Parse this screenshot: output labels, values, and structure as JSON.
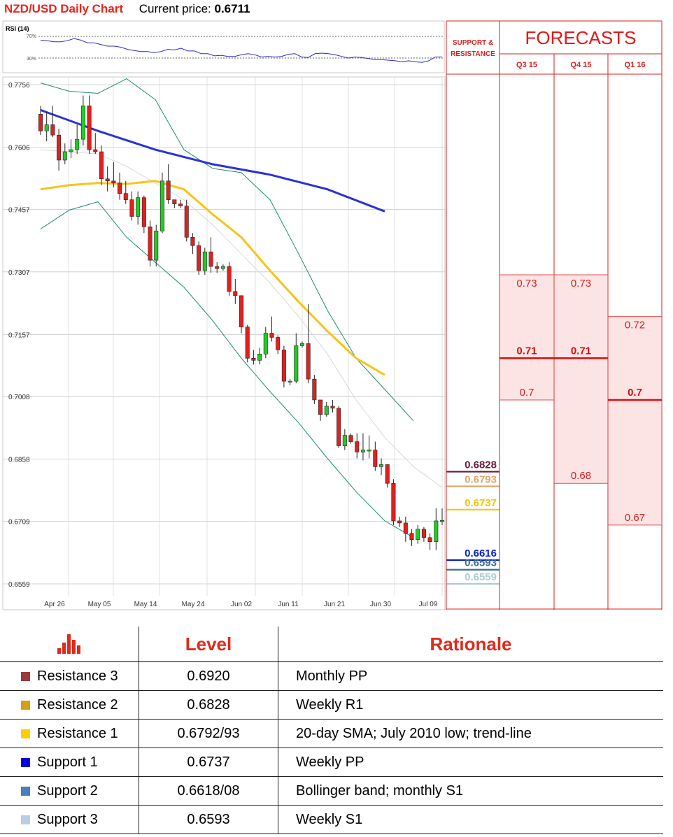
{
  "header": {
    "title": "NZD/USD Daily Chart",
    "price_label": "Current price:",
    "price_value": "0.6711"
  },
  "rsi": {
    "title": "RSI (14)",
    "levels": [
      "70%",
      "30%"
    ],
    "values": [
      63,
      62,
      60,
      60,
      62,
      66,
      63,
      58,
      58,
      55,
      52,
      52,
      50,
      46,
      44,
      42,
      42,
      40,
      42,
      46,
      45,
      48,
      43,
      43,
      38,
      38,
      34,
      35,
      33,
      33,
      36,
      38,
      36,
      32,
      33,
      32,
      33,
      37,
      38,
      32,
      31,
      38,
      39,
      38,
      36,
      33,
      30,
      32,
      31,
      29,
      27,
      27,
      26,
      25,
      23,
      25,
      23,
      22,
      25,
      32,
      32
    ]
  },
  "chart_data": {
    "type": "candlestick",
    "title": "NZD/USD Daily Chart",
    "y_ticks": [
      "0.7756",
      "0.7606",
      "0.7457",
      "0.7307",
      "0.7157",
      "0.7008",
      "0.6858",
      "0.6709",
      "0.6559"
    ],
    "ylim": [
      0.6509,
      0.7781
    ],
    "x_ticks": [
      "Apr 26",
      "May 05",
      "May 14",
      "May 24",
      "Jun 02",
      "Jun 11",
      "Jun 21",
      "Jun 30",
      "Jul 09"
    ],
    "candles": [
      [
        0.7685,
        0.7705,
        0.7635,
        0.7645
      ],
      [
        0.7645,
        0.769,
        0.762,
        0.766
      ],
      [
        0.766,
        0.7705,
        0.763,
        0.7635
      ],
      [
        0.7635,
        0.765,
        0.755,
        0.7575
      ],
      [
        0.7575,
        0.7615,
        0.7565,
        0.7595
      ],
      [
        0.7595,
        0.7625,
        0.758,
        0.76
      ],
      [
        0.76,
        0.766,
        0.759,
        0.7625
      ],
      [
        0.7625,
        0.773,
        0.761,
        0.7705
      ],
      [
        0.7705,
        0.773,
        0.759,
        0.76
      ],
      [
        0.76,
        0.764,
        0.759,
        0.7595
      ],
      [
        0.7595,
        0.761,
        0.7515,
        0.753
      ],
      [
        0.753,
        0.756,
        0.75,
        0.7525
      ],
      [
        0.7525,
        0.757,
        0.751,
        0.752
      ],
      [
        0.752,
        0.7545,
        0.748,
        0.7495
      ],
      [
        0.7495,
        0.7525,
        0.747,
        0.748
      ],
      [
        0.748,
        0.75,
        0.743,
        0.744
      ],
      [
        0.744,
        0.75,
        0.742,
        0.7485
      ],
      [
        0.7485,
        0.749,
        0.74,
        0.7415
      ],
      [
        0.7415,
        0.743,
        0.732,
        0.7335
      ],
      [
        0.7335,
        0.742,
        0.732,
        0.7405
      ],
      [
        0.7405,
        0.7545,
        0.74,
        0.7525
      ],
      [
        0.7525,
        0.7565,
        0.747,
        0.748
      ],
      [
        0.748,
        0.748,
        0.746,
        0.747
      ],
      [
        0.747,
        0.748,
        0.746,
        0.7465
      ],
      [
        0.7465,
        0.748,
        0.738,
        0.739
      ],
      [
        0.739,
        0.74,
        0.735,
        0.737
      ],
      [
        0.737,
        0.738,
        0.73,
        0.731
      ],
      [
        0.731,
        0.7365,
        0.73,
        0.7355
      ],
      [
        0.7355,
        0.739,
        0.7305,
        0.732
      ],
      [
        0.732,
        0.733,
        0.7305,
        0.7315
      ],
      [
        0.7315,
        0.7325,
        0.731,
        0.732
      ],
      [
        0.732,
        0.733,
        0.725,
        0.726
      ],
      [
        0.726,
        0.729,
        0.723,
        0.725
      ],
      [
        0.725,
        0.725,
        0.716,
        0.7175
      ],
      [
        0.7175,
        0.718,
        0.709,
        0.71
      ],
      [
        0.71,
        0.712,
        0.7085,
        0.7095
      ],
      [
        0.7095,
        0.7125,
        0.7085,
        0.711
      ],
      [
        0.711,
        0.7175,
        0.71,
        0.716
      ],
      [
        0.716,
        0.72,
        0.714,
        0.715
      ],
      [
        0.715,
        0.7155,
        0.711,
        0.712
      ],
      [
        0.712,
        0.713,
        0.703,
        0.7045
      ],
      [
        0.7045,
        0.705,
        0.7035,
        0.7045
      ],
      [
        0.7045,
        0.716,
        0.704,
        0.713
      ],
      [
        0.713,
        0.714,
        0.7125,
        0.7135
      ],
      [
        0.7135,
        0.723,
        0.704,
        0.705
      ],
      [
        0.705,
        0.706,
        0.699,
        0.7
      ],
      [
        0.7,
        0.7,
        0.695,
        0.6965
      ],
      [
        0.6965,
        0.6995,
        0.696,
        0.6985
      ],
      [
        0.6985,
        0.7,
        0.697,
        0.698
      ],
      [
        0.698,
        0.6985,
        0.6885,
        0.689
      ],
      [
        0.689,
        0.693,
        0.688,
        0.6915
      ],
      [
        0.6915,
        0.692,
        0.6895,
        0.69
      ],
      [
        0.69,
        0.692,
        0.686,
        0.6875
      ],
      [
        0.6875,
        0.692,
        0.6855,
        0.688
      ],
      [
        0.688,
        0.6915,
        0.686,
        0.688
      ],
      [
        0.688,
        0.69,
        0.683,
        0.684
      ],
      [
        0.684,
        0.686,
        0.682,
        0.6845
      ],
      [
        0.6845,
        0.6845,
        0.679,
        0.68
      ],
      [
        0.68,
        0.681,
        0.67,
        0.671
      ],
      [
        0.671,
        0.672,
        0.6695,
        0.6705
      ],
      [
        0.6705,
        0.672,
        0.666,
        0.668
      ],
      [
        0.668,
        0.669,
        0.665,
        0.6665
      ],
      [
        0.6665,
        0.67,
        0.6655,
        0.669
      ],
      [
        0.669,
        0.6695,
        0.666,
        0.667
      ],
      [
        0.667,
        0.668,
        0.664,
        0.666
      ],
      [
        0.666,
        0.674,
        0.664,
        0.671
      ],
      [
        0.671,
        0.674,
        0.67,
        0.6711
      ]
    ],
    "sma200": [
      [
        0,
        0.7695
      ],
      [
        20,
        0.7645
      ],
      [
        40,
        0.76
      ],
      [
        60,
        0.7565
      ],
      [
        80,
        0.754
      ],
      [
        100,
        0.7505
      ],
      [
        120,
        0.7452
      ]
    ],
    "sma100": [
      [
        0,
        0.7505
      ],
      [
        10,
        0.7515
      ],
      [
        20,
        0.752
      ],
      [
        30,
        0.7518
      ],
      [
        40,
        0.7525
      ],
      [
        50,
        0.7505
      ],
      [
        60,
        0.7445
      ],
      [
        70,
        0.739
      ],
      [
        80,
        0.731
      ],
      [
        90,
        0.7235
      ],
      [
        100,
        0.7165
      ],
      [
        110,
        0.71
      ],
      [
        120,
        0.706
      ]
    ],
    "sma20": [
      [
        0,
        0.76
      ],
      [
        20,
        0.759
      ],
      [
        30,
        0.756
      ],
      [
        40,
        0.752
      ],
      [
        50,
        0.748
      ],
      [
        60,
        0.742
      ],
      [
        70,
        0.735
      ],
      [
        80,
        0.728
      ],
      [
        90,
        0.72
      ],
      [
        100,
        0.711
      ],
      [
        110,
        0.7
      ],
      [
        120,
        0.691
      ],
      [
        130,
        0.684
      ],
      [
        140,
        0.679
      ]
    ],
    "bb_upper": [
      [
        0,
        0.776
      ],
      [
        10,
        0.774
      ],
      [
        20,
        0.7735
      ],
      [
        30,
        0.777
      ],
      [
        40,
        0.772
      ],
      [
        50,
        0.76
      ],
      [
        60,
        0.7555
      ],
      [
        70,
        0.7545
      ],
      [
        80,
        0.748
      ],
      [
        90,
        0.735
      ],
      [
        100,
        0.7215
      ],
      [
        110,
        0.71
      ],
      [
        120,
        0.7025
      ],
      [
        130,
        0.695
      ]
    ],
    "bb_lower": [
      [
        0,
        0.741
      ],
      [
        10,
        0.7455
      ],
      [
        20,
        0.7475
      ],
      [
        30,
        0.739
      ],
      [
        40,
        0.733
      ],
      [
        50,
        0.727
      ],
      [
        60,
        0.719
      ],
      [
        70,
        0.71
      ],
      [
        80,
        0.702
      ],
      [
        90,
        0.6945
      ],
      [
        100,
        0.686
      ],
      [
        110,
        0.678
      ],
      [
        120,
        0.671
      ],
      [
        130,
        0.667
      ]
    ],
    "levels": [
      {
        "label": "0.6828",
        "value": 0.6828,
        "color": "#6b1a3a"
      },
      {
        "label": "0.6793",
        "value": 0.6793,
        "color": "#dba765"
      },
      {
        "label": "0.6737",
        "value": 0.6737,
        "color": "#f2c800"
      },
      {
        "label": "0.6616",
        "value": 0.6616,
        "color": "#0a20c8"
      },
      {
        "label": "0.6593",
        "value": 0.6593,
        "color": "#3a6f94"
      },
      {
        "label": "0.6559",
        "value": 0.6559,
        "color": "#a9cdd5"
      }
    ]
  },
  "forecast": {
    "support_label": "SUPPORT & RESISTANCE",
    "title": "FORECASTS",
    "columns": [
      {
        "label": "Q3 15",
        "high": "0.73",
        "mid": "0.71",
        "low": "0.7",
        "high_v": 0.73,
        "mid_v": 0.71,
        "low_v": 0.7
      },
      {
        "label": "Q4 15",
        "high": "0.73",
        "mid": "0.71",
        "low": "0.68",
        "high_v": 0.73,
        "mid_v": 0.71,
        "low_v": 0.68
      },
      {
        "label": "Q1 16",
        "high": "0.72",
        "mid": "0.7",
        "low": "0.67",
        "high_v": 0.72,
        "mid_v": 0.7,
        "low_v": 0.67
      }
    ]
  },
  "table": {
    "headers": [
      "Level",
      "Rationale"
    ],
    "rows": [
      {
        "name": "Resistance 3",
        "level": "0.6920",
        "rationale": "Monthly PP",
        "color": "#9b3a3a"
      },
      {
        "name": "Resistance 2",
        "level": "0.6828",
        "rationale": "Weekly R1",
        "color": "#d4a017"
      },
      {
        "name": "Resistance 1",
        "level": "0.6792/93",
        "rationale": "20-day SMA; July 2010 low; trend-line",
        "color": "#ffcc00"
      },
      {
        "name": "Support 1",
        "level": "0.6737",
        "rationale": "Weekly PP",
        "color": "#0000dd"
      },
      {
        "name": "Support 2",
        "level": "0.6618/08",
        "rationale": "Bollinger band; monthly S1",
        "color": "#4a7fb8"
      },
      {
        "name": "Support 3",
        "level": "0.6593",
        "rationale": "Weekly S1",
        "color": "#b8cde6"
      }
    ]
  }
}
